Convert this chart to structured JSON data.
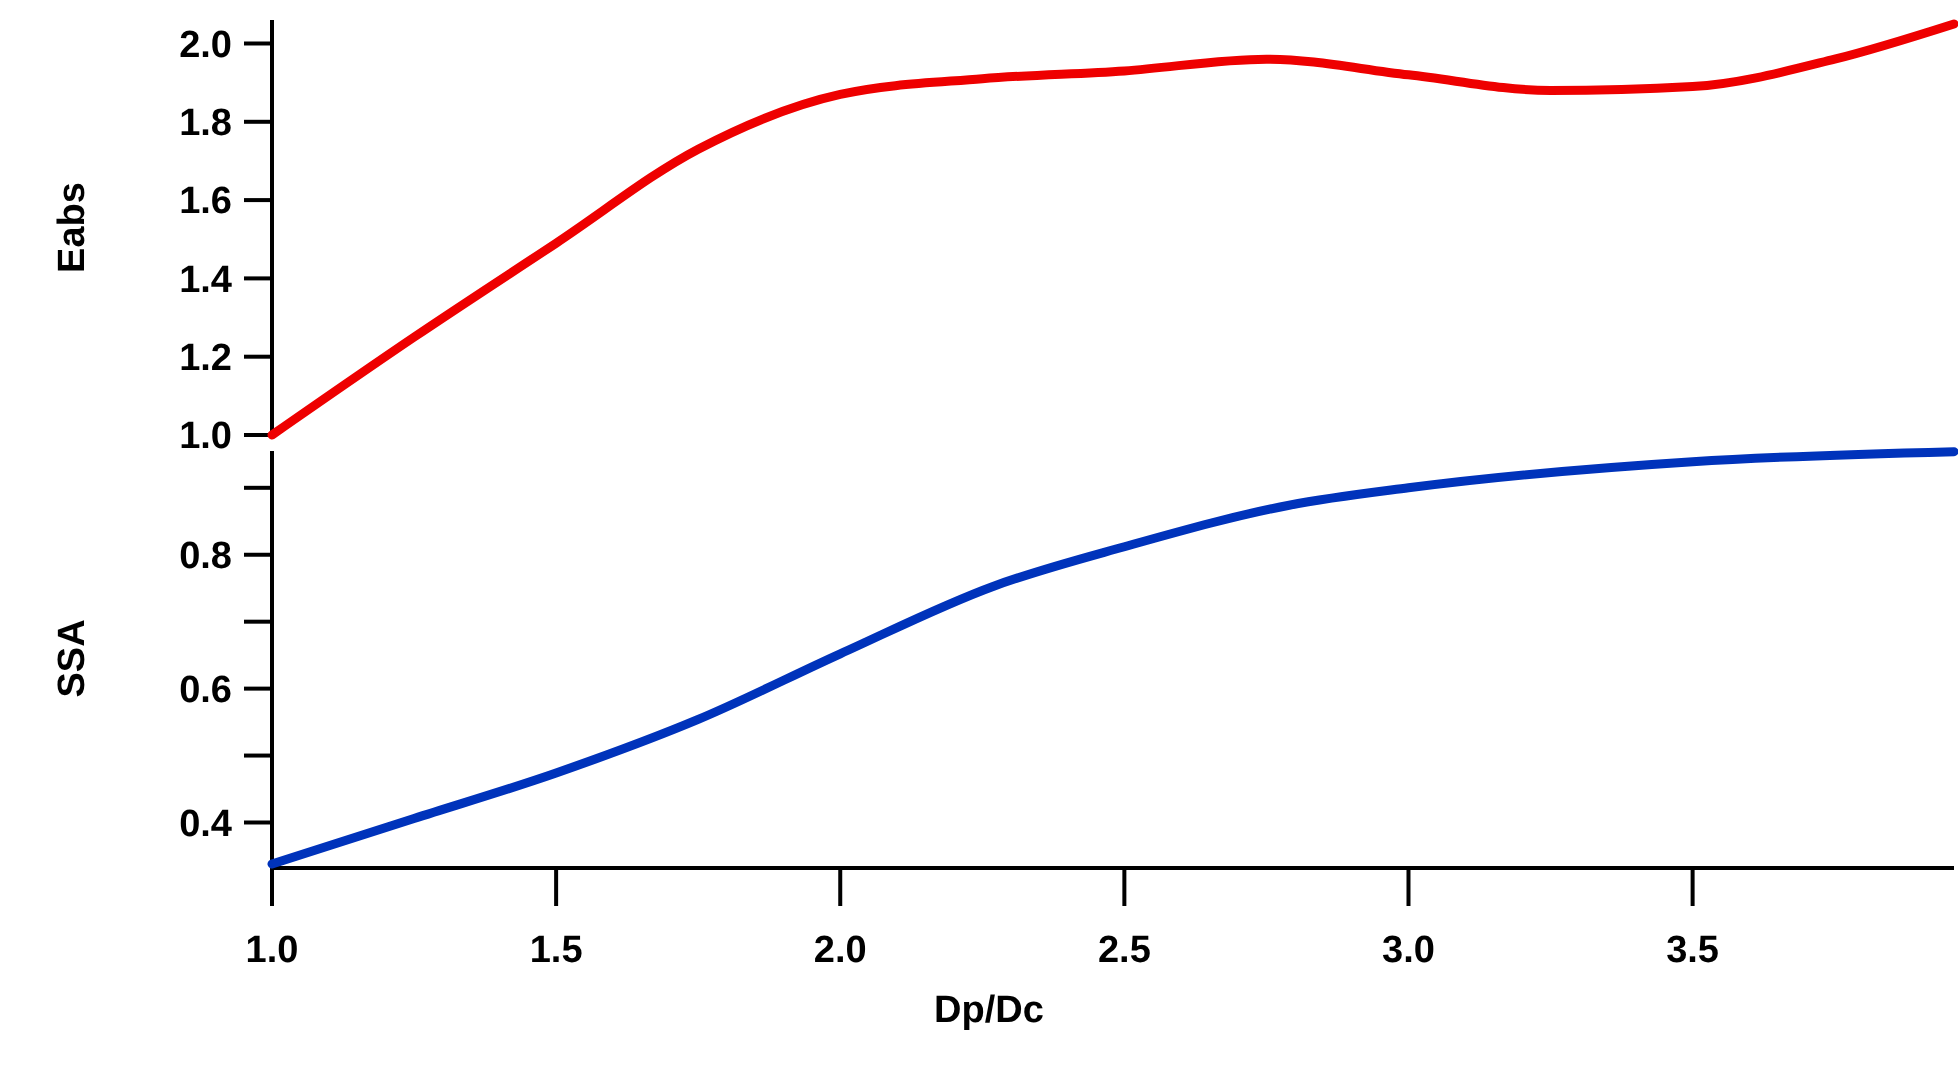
{
  "chart_data": [
    {
      "type": "line",
      "ylabel": "Eabs",
      "xlim": [
        1,
        3.96
      ],
      "ylim": [
        1,
        2.06
      ],
      "yticks": [
        {
          "value": 1,
          "label": "1.0"
        },
        {
          "value": 1.2,
          "label": "1.2"
        },
        {
          "value": 1.4,
          "label": "1.4"
        },
        {
          "value": 1.6,
          "label": "1.6"
        },
        {
          "value": 1.8,
          "label": "1.8"
        },
        {
          "value": 2,
          "label": "2.0"
        }
      ],
      "tick_labels": "y",
      "grid": false,
      "x": [
        1.0,
        1.25,
        1.5,
        1.75,
        2.0,
        2.25,
        2.5,
        2.75,
        3.0,
        3.25,
        3.5,
        3.75,
        3.96
      ],
      "series": [
        {
          "color": "#ee0000",
          "values": [
            1.0,
            1.25,
            1.49,
            1.73,
            1.87,
            1.91,
            1.93,
            1.96,
            1.92,
            1.88,
            1.89,
            1.96,
            2.05
          ]
        }
      ]
    },
    {
      "type": "line",
      "xlabel": "Dp/Dc",
      "ylabel": "SSA",
      "xlim": [
        1,
        3.96
      ],
      "ylim": [
        0.335,
        0.955
      ],
      "xticks": [
        {
          "value": 1,
          "label": "1.0"
        },
        1.5,
        {
          "value": 2,
          "label": "2.0"
        },
        2.5,
        {
          "value": 3,
          "label": "3.0"
        },
        3.5
      ],
      "yticks": [
        0.4,
        {
          "value": 0.5,
          "label": null
        },
        0.6,
        {
          "value": 0.7,
          "label": null
        },
        0.8,
        {
          "value": 0.9,
          "label": null
        }
      ],
      "grid": false,
      "x": [
        1.0,
        1.25,
        1.5,
        1.75,
        2.0,
        2.27,
        2.5,
        2.79,
        3.0,
        3.5,
        3.96
      ],
      "series": [
        {
          "color": "#0033bb",
          "values": [
            0.338,
            0.406,
            0.474,
            0.554,
            0.652,
            0.753,
            0.812,
            0.874,
            0.9,
            0.939,
            0.954
          ]
        }
      ]
    }
  ]
}
